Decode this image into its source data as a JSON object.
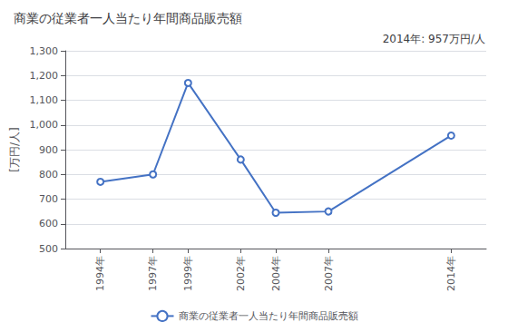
{
  "chart_data": {
    "type": "line",
    "title": "商業の従業者一人当たり年間商品販売額",
    "ylabel": "[万円/人]",
    "annotation": "2014年: 957万円/人",
    "x": [
      1994,
      1997,
      1999,
      2002,
      2004,
      2007,
      2014
    ],
    "series": [
      {
        "name": "商業の従業者一人当たり年間商品販売額",
        "color": "#4472C4",
        "marker": "circle",
        "values": [
          770,
          800,
          1170,
          860,
          645,
          650,
          957
        ]
      }
    ],
    "xlim": [
      1992,
      2016
    ],
    "xticks": [
      {
        "value": 1994,
        "label": "1994年"
      },
      {
        "value": 1997,
        "label": "1997年"
      },
      {
        "value": 1999,
        "label": "1999年"
      },
      {
        "value": 2002,
        "label": "2002年"
      },
      {
        "value": 2004,
        "label": "2004年"
      },
      {
        "value": 2007,
        "label": "2007年"
      },
      {
        "value": 2014,
        "label": "2014年"
      }
    ],
    "ylim": [
      500,
      1300
    ],
    "yticks": [
      500,
      600,
      700,
      800,
      900,
      {
        "value": 1000,
        "label": "1,000"
      },
      {
        "value": 1100,
        "label": "1,100"
      },
      {
        "value": 1200,
        "label": "1,200"
      },
      {
        "value": 1300,
        "label": "1,300"
      }
    ],
    "grid": "y",
    "legend": "bottom"
  }
}
